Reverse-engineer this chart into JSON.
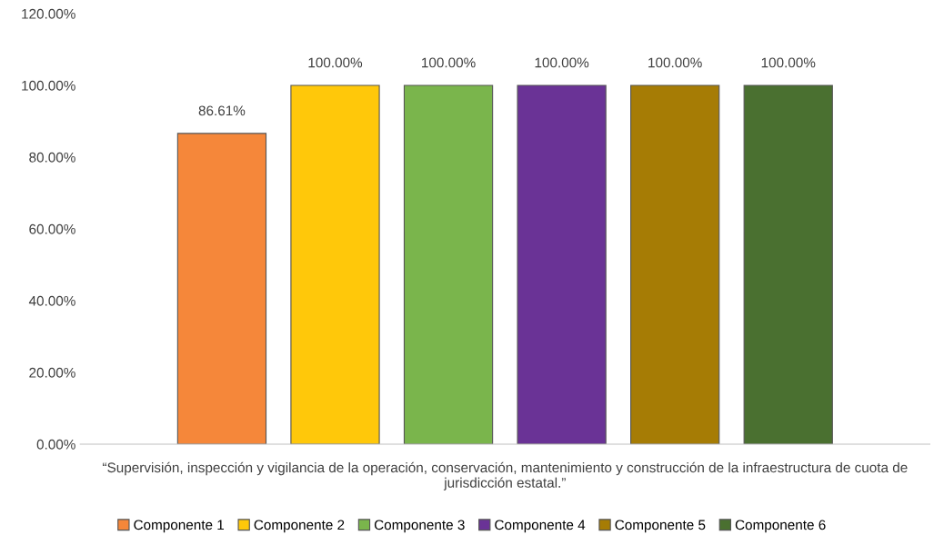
{
  "chart_data": {
    "type": "bar",
    "categories": [
      "“Supervisión, inspección y vigilancia de la operación, conservación, mantenimiento y construcción de la infraestructura de cuota de jurisdicción estatal.”"
    ],
    "series": [
      {
        "name": "Componente 1",
        "color": "#f5873a",
        "values": [
          86.61
        ],
        "value_labels": [
          "86.61%"
        ]
      },
      {
        "name": "Componente 2",
        "color": "#ffc80a",
        "values": [
          100
        ],
        "value_labels": [
          "100.00%"
        ]
      },
      {
        "name": "Componente 3",
        "color": "#7ab54c",
        "values": [
          100
        ],
        "value_labels": [
          "100.00%"
        ]
      },
      {
        "name": "Componente 4",
        "color": "#6a3396",
        "values": [
          100
        ],
        "value_labels": [
          "100.00%"
        ]
      },
      {
        "name": "Componente 5",
        "color": "#a67c05",
        "values": [
          100
        ],
        "value_labels": [
          "100.00%"
        ]
      },
      {
        "name": "Componente 6",
        "color": "#4a7030",
        "values": [
          100
        ],
        "value_labels": [
          "100.00%"
        ]
      }
    ],
    "ylim": [
      0,
      120
    ],
    "yticks": [
      {
        "value": 0,
        "label": "0.00%"
      },
      {
        "value": 20,
        "label": "20.00%"
      },
      {
        "value": 40,
        "label": "40.00%"
      },
      {
        "value": 60,
        "label": "60.00%"
      },
      {
        "value": 80,
        "label": "80.00%"
      },
      {
        "value": 100,
        "label": "100.00%"
      },
      {
        "value": 120,
        "label": "120.00%"
      }
    ],
    "grid": false,
    "legend": "bottom"
  }
}
